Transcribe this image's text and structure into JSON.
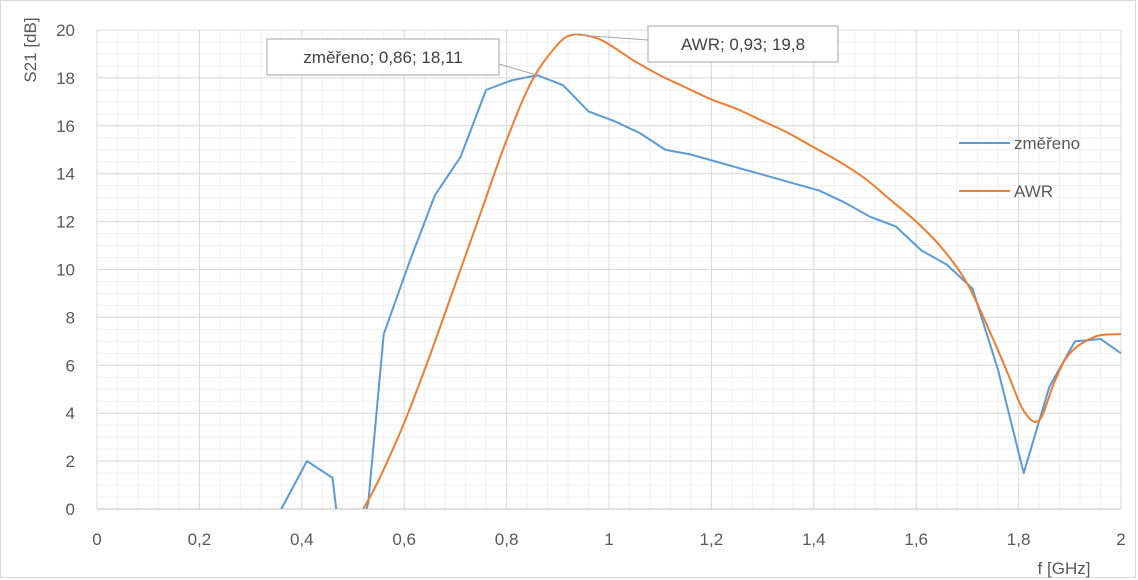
{
  "chart_data": {
    "type": "line",
    "title": "",
    "xlabel": "f [GHz]",
    "ylabel": "S21 [dB]",
    "xlim": [
      0,
      2
    ],
    "ylim": [
      0,
      20
    ],
    "xticks": [
      "0",
      "0,2",
      "0,4",
      "0,6",
      "0,8",
      "1",
      "1,2",
      "1,4",
      "1,6",
      "1,8",
      "2"
    ],
    "yticks": [
      "0",
      "2",
      "4",
      "6",
      "8",
      "10",
      "12",
      "14",
      "16",
      "18",
      "20"
    ],
    "grid": "major and minor",
    "legend_position": "right",
    "series": [
      {
        "name": "změřeno",
        "color": "#5B9BD5",
        "smooth": false,
        "x": [
          0.36,
          0.41,
          0.46,
          0.47,
          0.52,
          0.53,
          0.56,
          0.61,
          0.66,
          0.71,
          0.76,
          0.81,
          0.86,
          0.91,
          0.96,
          1.01,
          1.06,
          1.11,
          1.16,
          1.21,
          1.26,
          1.31,
          1.36,
          1.41,
          1.46,
          1.51,
          1.56,
          1.61,
          1.66,
          1.71,
          1.76,
          1.81,
          1.86,
          1.91,
          1.96,
          2.0
        ],
        "y": [
          0,
          2.0,
          1.3,
          -0.5,
          -0.6,
          0.3,
          7.3,
          10.3,
          13.1,
          14.7,
          17.5,
          17.9,
          18.11,
          17.7,
          16.6,
          16.2,
          15.7,
          15.0,
          14.8,
          14.5,
          14.2,
          13.9,
          13.6,
          13.3,
          12.8,
          12.2,
          11.8,
          10.8,
          10.2,
          9.2,
          5.8,
          1.5,
          5.1,
          7.0,
          7.1,
          6.5
        ]
      },
      {
        "name": "AWR",
        "color": "#ED7D31",
        "smooth": true,
        "x": [
          0.52,
          0.55,
          0.6,
          0.65,
          0.7,
          0.75,
          0.8,
          0.85,
          0.9,
          0.93,
          0.97,
          1.0,
          1.05,
          1.1,
          1.15,
          1.2,
          1.25,
          1.3,
          1.35,
          1.4,
          1.45,
          1.5,
          1.55,
          1.6,
          1.65,
          1.7,
          1.75,
          1.78,
          1.81,
          1.84,
          1.87,
          1.9,
          1.95,
          2.0
        ],
        "y": [
          0,
          1.2,
          3.6,
          6.4,
          9.4,
          12.4,
          15.4,
          17.9,
          19.4,
          19.8,
          19.7,
          19.4,
          18.7,
          18.1,
          17.6,
          17.1,
          16.7,
          16.2,
          15.7,
          15.1,
          14.5,
          13.8,
          12.9,
          12.0,
          10.9,
          9.4,
          7.1,
          5.6,
          4.1,
          3.7,
          5.3,
          6.5,
          7.2,
          7.3
        ]
      }
    ],
    "annotations": [
      {
        "text": "změřeno; 0,86; 18,11",
        "x": 0.86,
        "y": 18.11,
        "series": "změřeno"
      },
      {
        "text": "AWR; 0,93; 19,8",
        "x": 0.93,
        "y": 19.8,
        "series": "AWR"
      }
    ]
  }
}
